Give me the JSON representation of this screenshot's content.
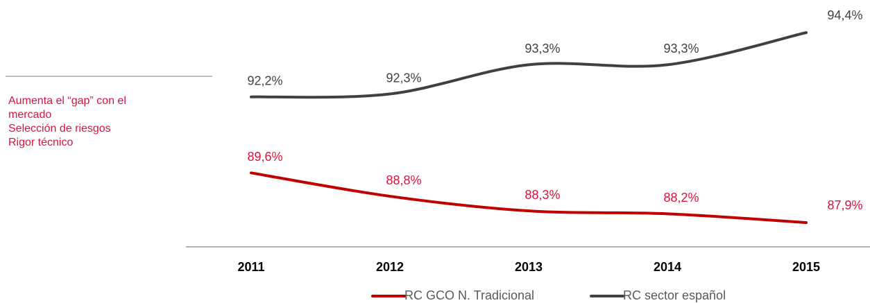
{
  "chart_data": {
    "type": "line",
    "categories": [
      "2011",
      "2012",
      "2013",
      "2014",
      "2015"
    ],
    "series": [
      {
        "name": "RC GCO N. Tradicional",
        "color": "#c00000",
        "label_color": "#d9123c",
        "values": [
          89.6,
          88.8,
          88.3,
          88.2,
          87.9
        ],
        "value_labels": [
          "89,6%",
          "88,8%",
          "88,3%",
          "88,2%",
          "87,9%"
        ]
      },
      {
        "name": "RC sector español",
        "color": "#404040",
        "label_color": "#404040",
        "values": [
          92.2,
          92.3,
          93.3,
          93.3,
          94.4
        ],
        "value_labels": [
          "92,2%",
          "92,3%",
          "93,3%",
          "93,3%",
          "94,4%"
        ]
      }
    ],
    "annotations": [
      "Aumenta el “gap” con el",
      "mercado",
      "Selección de riesgos",
      "Rigor técnico"
    ]
  }
}
